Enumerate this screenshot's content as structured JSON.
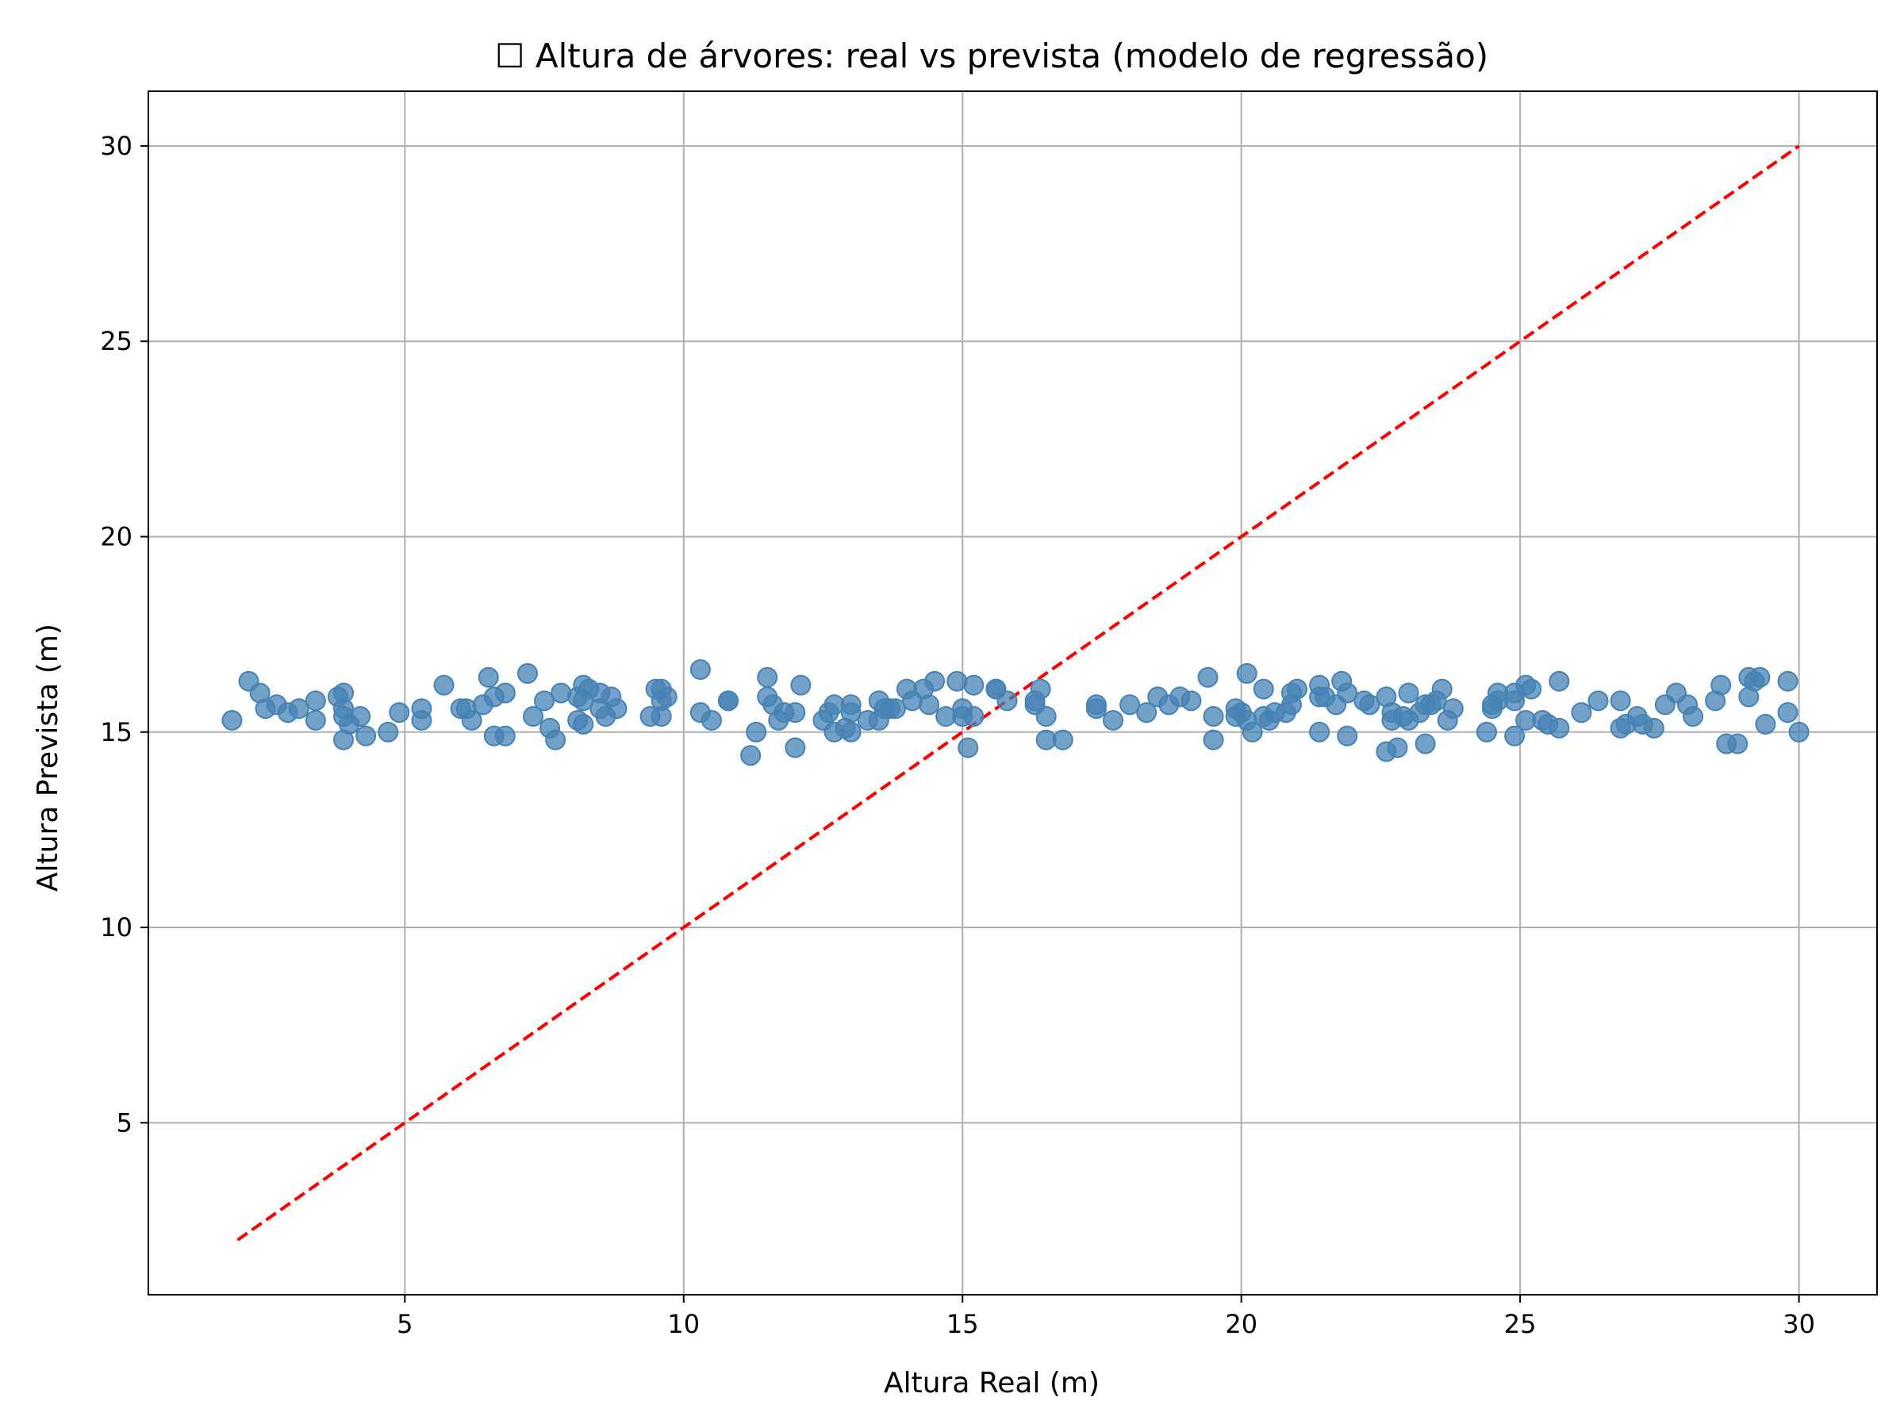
{
  "chart_data": {
    "type": "scatter",
    "title": "☐ Altura de árvores: real vs prevista (modelo de regressão)",
    "xlabel": "Altura Real (m)",
    "ylabel": "Altura Prevista (m)",
    "xlim": [
      0.4,
      31.4
    ],
    "ylim": [
      0.6,
      31.4
    ],
    "xticks": [
      5,
      10,
      15,
      20,
      25,
      30
    ],
    "yticks": [
      5,
      10,
      15,
      20,
      25,
      30
    ],
    "grid": true,
    "colors": {
      "points": "#4682b4",
      "reference_line": "#ff0000",
      "grid": "#b0b0b0"
    },
    "reference_line": {
      "style": "dashed",
      "x": [
        2,
        30
      ],
      "y": [
        2,
        30
      ]
    },
    "points": [
      [
        1.9,
        15.3
      ],
      [
        2.2,
        16.3
      ],
      [
        2.4,
        16.0
      ],
      [
        2.5,
        15.6
      ],
      [
        2.7,
        15.7
      ],
      [
        2.9,
        15.5
      ],
      [
        3.1,
        15.6
      ],
      [
        3.4,
        15.8
      ],
      [
        3.4,
        15.3
      ],
      [
        3.8,
        15.9
      ],
      [
        3.9,
        15.6
      ],
      [
        3.9,
        16.0
      ],
      [
        3.9,
        15.4
      ],
      [
        3.9,
        14.8
      ],
      [
        4.0,
        15.2
      ],
      [
        4.2,
        15.4
      ],
      [
        4.3,
        14.9
      ],
      [
        4.7,
        15.0
      ],
      [
        4.9,
        15.5
      ],
      [
        5.3,
        15.6
      ],
      [
        5.3,
        15.3
      ],
      [
        5.7,
        16.2
      ],
      [
        6.0,
        15.6
      ],
      [
        6.1,
        15.6
      ],
      [
        6.2,
        15.3
      ],
      [
        6.4,
        15.7
      ],
      [
        6.5,
        16.4
      ],
      [
        6.6,
        15.9
      ],
      [
        6.6,
        14.9
      ],
      [
        6.8,
        14.9
      ],
      [
        6.8,
        16.0
      ],
      [
        7.2,
        16.5
      ],
      [
        7.3,
        15.4
      ],
      [
        7.5,
        15.8
      ],
      [
        7.6,
        15.1
      ],
      [
        7.7,
        14.8
      ],
      [
        7.8,
        16.0
      ],
      [
        8.1,
        15.9
      ],
      [
        8.1,
        15.3
      ],
      [
        8.2,
        16.2
      ],
      [
        8.2,
        15.8
      ],
      [
        8.2,
        15.2
      ],
      [
        8.3,
        16.1
      ],
      [
        8.5,
        16.0
      ],
      [
        8.5,
        15.6
      ],
      [
        8.6,
        15.4
      ],
      [
        8.7,
        15.9
      ],
      [
        8.8,
        15.6
      ],
      [
        9.4,
        15.4
      ],
      [
        9.5,
        16.1
      ],
      [
        9.6,
        16.1
      ],
      [
        9.6,
        15.8
      ],
      [
        9.6,
        15.4
      ],
      [
        9.7,
        15.9
      ],
      [
        10.3,
        16.6
      ],
      [
        10.3,
        15.5
      ],
      [
        10.5,
        15.3
      ],
      [
        10.8,
        15.8
      ],
      [
        10.8,
        15.8
      ],
      [
        11.2,
        14.4
      ],
      [
        11.3,
        15.0
      ],
      [
        11.5,
        16.4
      ],
      [
        11.5,
        15.9
      ],
      [
        11.6,
        15.7
      ],
      [
        11.7,
        15.3
      ],
      [
        11.8,
        15.5
      ],
      [
        12.0,
        15.5
      ],
      [
        12.0,
        14.6
      ],
      [
        12.1,
        16.2
      ],
      [
        12.5,
        15.3
      ],
      [
        12.6,
        15.5
      ],
      [
        12.7,
        15.7
      ],
      [
        12.7,
        15.0
      ],
      [
        12.9,
        15.1
      ],
      [
        13.0,
        15.5
      ],
      [
        13.0,
        15.7
      ],
      [
        13.0,
        15.0
      ],
      [
        13.3,
        15.3
      ],
      [
        13.5,
        15.8
      ],
      [
        13.5,
        15.3
      ],
      [
        13.6,
        15.6
      ],
      [
        13.7,
        15.6
      ],
      [
        13.8,
        15.6
      ],
      [
        14.0,
        16.1
      ],
      [
        14.1,
        15.8
      ],
      [
        14.3,
        16.1
      ],
      [
        14.4,
        15.7
      ],
      [
        14.5,
        16.3
      ],
      [
        14.7,
        15.4
      ],
      [
        14.9,
        16.3
      ],
      [
        15.0,
        15.4
      ],
      [
        15.0,
        15.6
      ],
      [
        15.1,
        14.6
      ],
      [
        15.2,
        15.4
      ],
      [
        15.2,
        16.2
      ],
      [
        15.6,
        16.1
      ],
      [
        15.6,
        16.1
      ],
      [
        15.8,
        15.8
      ],
      [
        16.3,
        15.8
      ],
      [
        16.3,
        15.7
      ],
      [
        16.4,
        16.1
      ],
      [
        16.5,
        15.4
      ],
      [
        16.5,
        14.8
      ],
      [
        16.8,
        14.8
      ],
      [
        17.4,
        15.7
      ],
      [
        17.4,
        15.6
      ],
      [
        17.7,
        15.3
      ],
      [
        18.0,
        15.7
      ],
      [
        18.3,
        15.5
      ],
      [
        18.5,
        15.9
      ],
      [
        18.7,
        15.7
      ],
      [
        18.9,
        15.9
      ],
      [
        19.1,
        15.8
      ],
      [
        19.4,
        16.4
      ],
      [
        19.5,
        15.4
      ],
      [
        19.5,
        14.8
      ],
      [
        19.9,
        15.6
      ],
      [
        19.9,
        15.4
      ],
      [
        20.0,
        15.5
      ],
      [
        20.1,
        15.3
      ],
      [
        20.1,
        16.5
      ],
      [
        20.2,
        15.0
      ],
      [
        20.4,
        16.1
      ],
      [
        20.4,
        15.4
      ],
      [
        20.5,
        15.3
      ],
      [
        20.6,
        15.5
      ],
      [
        20.8,
        15.5
      ],
      [
        20.9,
        15.7
      ],
      [
        20.9,
        16.0
      ],
      [
        21.0,
        16.1
      ],
      [
        21.4,
        16.2
      ],
      [
        21.4,
        15.0
      ],
      [
        21.4,
        15.9
      ],
      [
        21.5,
        15.9
      ],
      [
        21.7,
        15.7
      ],
      [
        21.8,
        16.3
      ],
      [
        21.9,
        16.0
      ],
      [
        21.9,
        14.9
      ],
      [
        22.2,
        15.8
      ],
      [
        22.3,
        15.7
      ],
      [
        22.6,
        15.9
      ],
      [
        22.6,
        14.5
      ],
      [
        22.7,
        15.3
      ],
      [
        22.7,
        15.5
      ],
      [
        22.8,
        14.6
      ],
      [
        22.9,
        15.4
      ],
      [
        23.0,
        16.0
      ],
      [
        23.0,
        15.3
      ],
      [
        23.2,
        15.5
      ],
      [
        23.3,
        15.7
      ],
      [
        23.3,
        14.7
      ],
      [
        23.4,
        15.7
      ],
      [
        23.5,
        15.8
      ],
      [
        23.6,
        16.1
      ],
      [
        23.7,
        15.3
      ],
      [
        23.8,
        15.6
      ],
      [
        24.4,
        15.0
      ],
      [
        24.5,
        15.7
      ],
      [
        24.5,
        15.6
      ],
      [
        24.6,
        16.0
      ],
      [
        24.6,
        15.8
      ],
      [
        24.9,
        16.0
      ],
      [
        24.9,
        15.8
      ],
      [
        24.9,
        14.9
      ],
      [
        25.1,
        15.3
      ],
      [
        25.1,
        16.2
      ],
      [
        25.2,
        16.1
      ],
      [
        25.4,
        15.3
      ],
      [
        25.5,
        15.2
      ],
      [
        25.7,
        16.3
      ],
      [
        25.7,
        15.1
      ],
      [
        26.1,
        15.5
      ],
      [
        26.4,
        15.8
      ],
      [
        26.8,
        15.1
      ],
      [
        26.8,
        15.8
      ],
      [
        26.9,
        15.2
      ],
      [
        27.1,
        15.4
      ],
      [
        27.2,
        15.2
      ],
      [
        27.4,
        15.1
      ],
      [
        27.6,
        15.7
      ],
      [
        27.8,
        16.0
      ],
      [
        28.0,
        15.7
      ],
      [
        28.1,
        15.4
      ],
      [
        28.5,
        15.8
      ],
      [
        28.6,
        16.2
      ],
      [
        28.7,
        14.7
      ],
      [
        28.9,
        14.7
      ],
      [
        29.1,
        16.4
      ],
      [
        29.1,
        15.9
      ],
      [
        29.2,
        16.3
      ],
      [
        29.3,
        16.4
      ],
      [
        29.4,
        15.2
      ],
      [
        29.8,
        16.3
      ],
      [
        29.8,
        15.5
      ],
      [
        30.0,
        15.0
      ]
    ]
  }
}
